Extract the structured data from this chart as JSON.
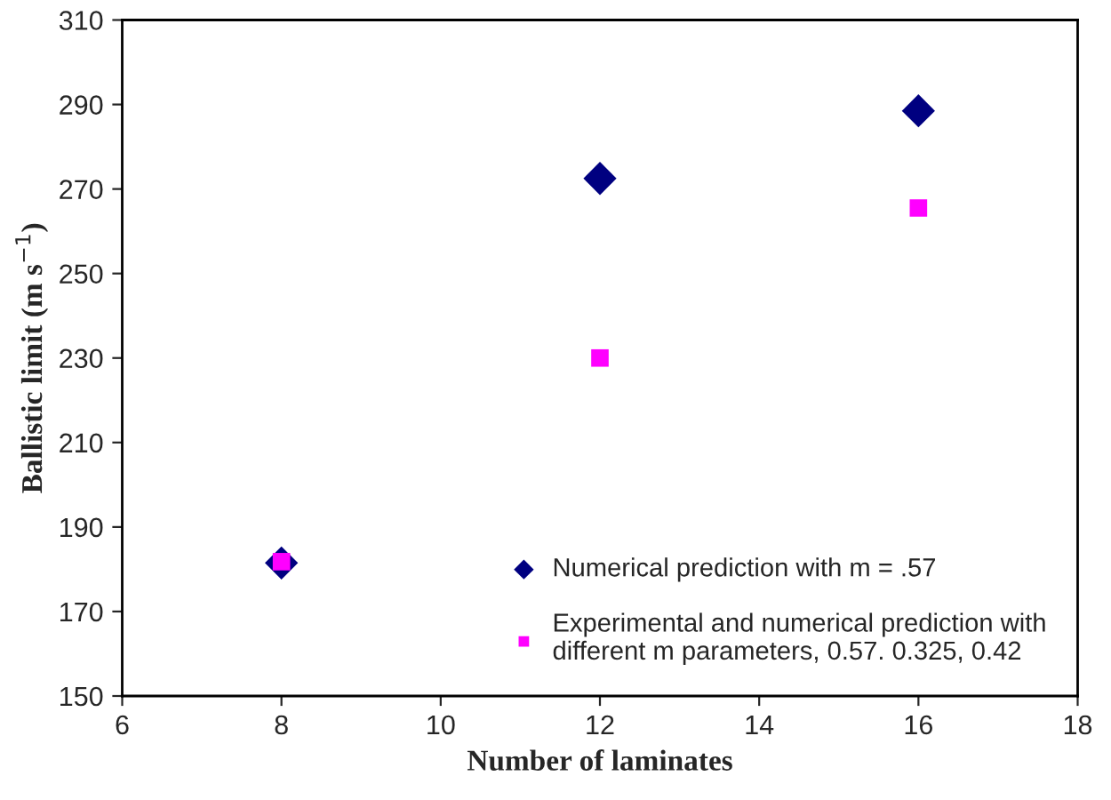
{
  "chart_data": {
    "type": "scatter",
    "xlabel": "Number of laminates",
    "ylabel": "Ballistic limit (m s$^{−1}$)",
    "x": [
      8,
      12,
      16
    ],
    "series": [
      {
        "name": "Numerical prediction with m = .57",
        "color": "#000080",
        "marker": "diamond",
        "values": [
          181.5,
          272.5,
          288.5
        ]
      },
      {
        "name": "Experimental and numerical prediction with\ndifferent m parameters, 0.57. 0.325, 0.42",
        "color": "#ff00ff",
        "marker": "square",
        "values": [
          181.8,
          230,
          265.5
        ]
      }
    ],
    "xlim": [
      6,
      18
    ],
    "xticks": [
      6,
      8,
      10,
      12,
      14,
      16,
      18
    ],
    "ylim": [
      150,
      310
    ],
    "yticks": [
      150,
      170,
      190,
      210,
      230,
      250,
      270,
      290,
      310
    ],
    "grid": false,
    "legend": "bottom right"
  }
}
